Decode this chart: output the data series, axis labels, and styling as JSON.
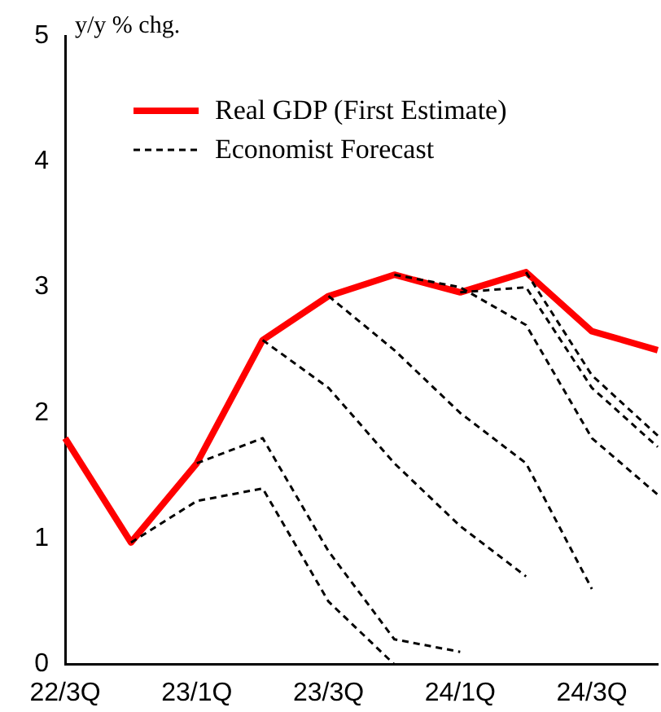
{
  "chart_data": {
    "type": "line",
    "ylabel": "y/y % chg.",
    "categories": [
      "22/3Q",
      null,
      "23/1Q",
      null,
      "23/3Q",
      null,
      "24/1Q",
      null,
      "24/3Q",
      null
    ],
    "series": [
      {
        "name": "Real GDP (First Estimate)",
        "color": "#ff0000",
        "line_style": "solid",
        "values": [
          1.8,
          0.97,
          1.6,
          2.58,
          2.93,
          3.1,
          2.96,
          3.12,
          2.65,
          2.5
        ]
      },
      {
        "name": "Economist Forecast",
        "color": "#000000",
        "line_style": "dashed",
        "values": [
          null,
          0.97,
          1.3,
          1.4,
          0.5,
          0.0,
          null,
          null,
          null,
          null
        ]
      },
      {
        "color": "#000000",
        "line_style": "dashed",
        "values": [
          null,
          null,
          1.6,
          1.8,
          0.9,
          0.2,
          0.1,
          null,
          null,
          null
        ]
      },
      {
        "color": "#000000",
        "line_style": "dashed",
        "values": [
          null,
          null,
          null,
          2.58,
          2.2,
          1.6,
          1.1,
          0.7,
          null,
          null
        ]
      },
      {
        "color": "#000000",
        "line_style": "dashed",
        "values": [
          null,
          null,
          null,
          null,
          2.93,
          2.5,
          2.0,
          1.6,
          0.6,
          null
        ]
      },
      {
        "color": "#000000",
        "line_style": "dashed",
        "values": [
          null,
          null,
          null,
          null,
          null,
          3.1,
          3.0,
          2.7,
          1.8,
          1.35
        ]
      },
      {
        "color": "#000000",
        "line_style": "dashed",
        "values": [
          null,
          null,
          null,
          null,
          null,
          null,
          2.96,
          3.0,
          2.2,
          1.73
        ]
      },
      {
        "color": "#000000",
        "line_style": "dashed",
        "values": [
          null,
          null,
          null,
          null,
          null,
          null,
          null,
          3.12,
          2.3,
          1.82
        ]
      }
    ],
    "ylim": [
      0,
      5
    ],
    "yticks": [
      0,
      1,
      2,
      3,
      4,
      5
    ],
    "grid": false,
    "legend": "top left",
    "marker": "none"
  }
}
